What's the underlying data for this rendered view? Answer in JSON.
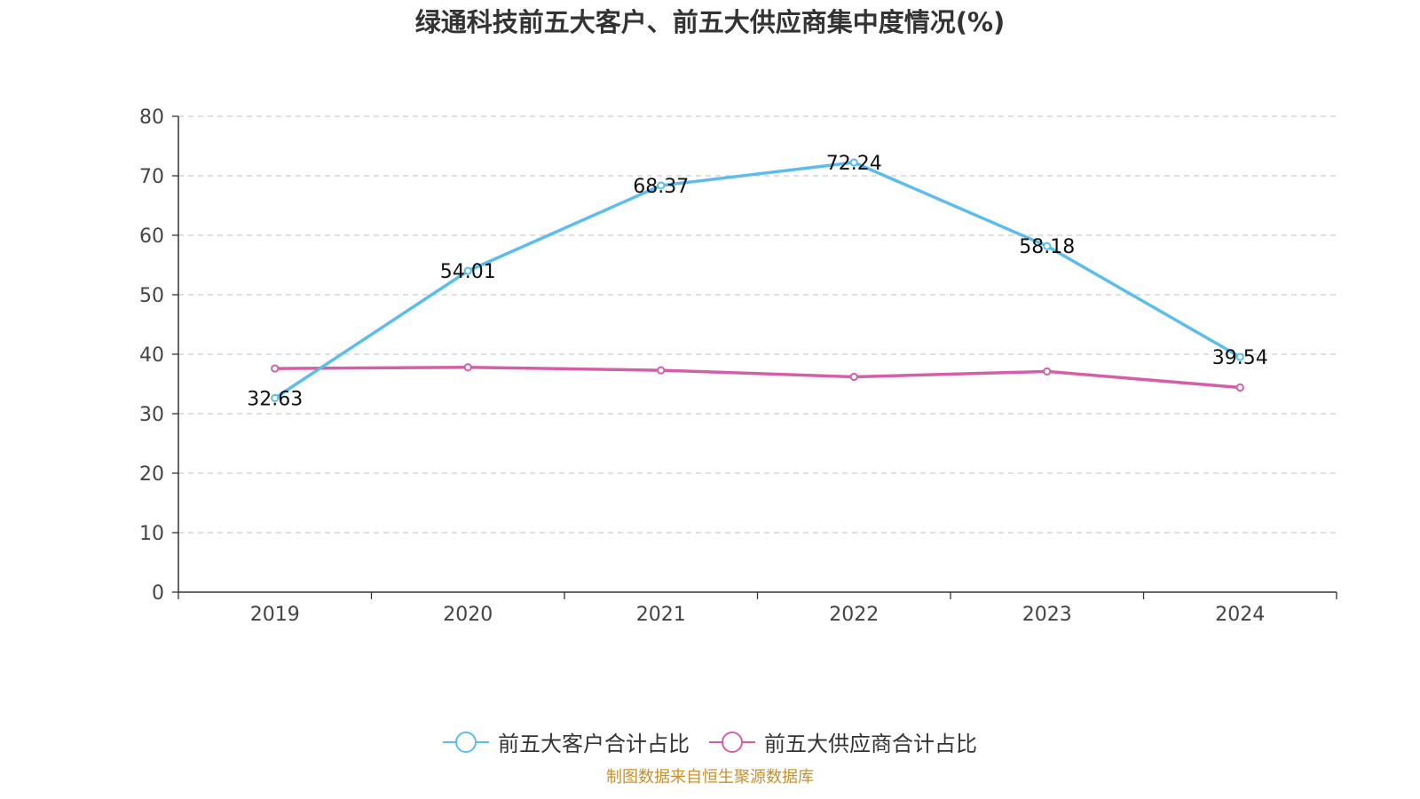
{
  "title": "绿通科技前五大客户、前五大供应商集中度情况(%)",
  "source_note": "制图数据来自恒生聚源数据库",
  "chart_data": {
    "type": "line",
    "title": "绿通科技前五大客户、前五大供应商集中度情况(%)",
    "xlabel": "",
    "ylabel": "",
    "categories": [
      "2019",
      "2020",
      "2021",
      "2022",
      "2023",
      "2024"
    ],
    "ylim": [
      0,
      80
    ],
    "yticks": [
      0,
      10,
      20,
      30,
      40,
      50,
      60,
      70,
      80
    ],
    "grid": true,
    "legend_position": "bottom",
    "series": [
      {
        "name": "前五大客户合计占比",
        "color": "#5bbcee",
        "values": [
          32.63,
          54.01,
          68.37,
          72.24,
          58.18,
          39.54
        ],
        "show_labels": true
      },
      {
        "name": "前五大供应商合计占比",
        "color": "#d45fa8",
        "values": [
          37.6,
          37.8,
          37.3,
          36.2,
          37.1,
          34.4
        ],
        "show_labels": false
      }
    ]
  }
}
